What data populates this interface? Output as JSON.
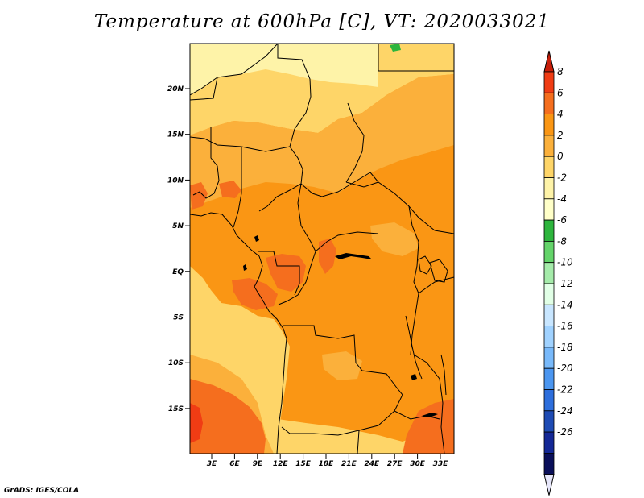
{
  "title": "Temperature at 600hPa [C], VT: 2020033021",
  "credit": "GrADS: IGES/COLA",
  "lat_ticks": [
    "20N",
    "15N",
    "10N",
    "5N",
    "EQ",
    "5S",
    "10S",
    "15S"
  ],
  "lon_ticks": [
    "3E",
    "6E",
    "9E",
    "12E",
    "15E",
    "18E",
    "21E",
    "24E",
    "27E",
    "30E",
    "33E"
  ],
  "colorbar": {
    "labels": [
      "8",
      "6",
      "4",
      "2",
      "0",
      "-2",
      "-4",
      "-6",
      "-8",
      "-10",
      "-12",
      "-14",
      "-16",
      "-18",
      "-20",
      "-22",
      "-24",
      "-26"
    ],
    "colors": [
      "#c81e0a",
      "#f03c14",
      "#f56e1e",
      "#fa9614",
      "#fbb03b",
      "#fed568",
      "#fef3a8",
      "#ffffc8",
      "#2db53d",
      "#64d46a",
      "#a5ebaa",
      "#e1ffe6",
      "#c8e6ff",
      "#a0d2ff",
      "#78b9fa",
      "#4b96f0",
      "#2d6edc",
      "#1e4bb4",
      "#142896",
      "#0a0f5a",
      "#e6e6fa"
    ]
  },
  "colors": {
    "background": "#fbb03b",
    "warm": "#fa9614",
    "hot": "#f56e1e",
    "hottest": "#f03c14",
    "pale": "#fed568",
    "lightest": "#fef3a8",
    "green": "#2db53d"
  }
}
